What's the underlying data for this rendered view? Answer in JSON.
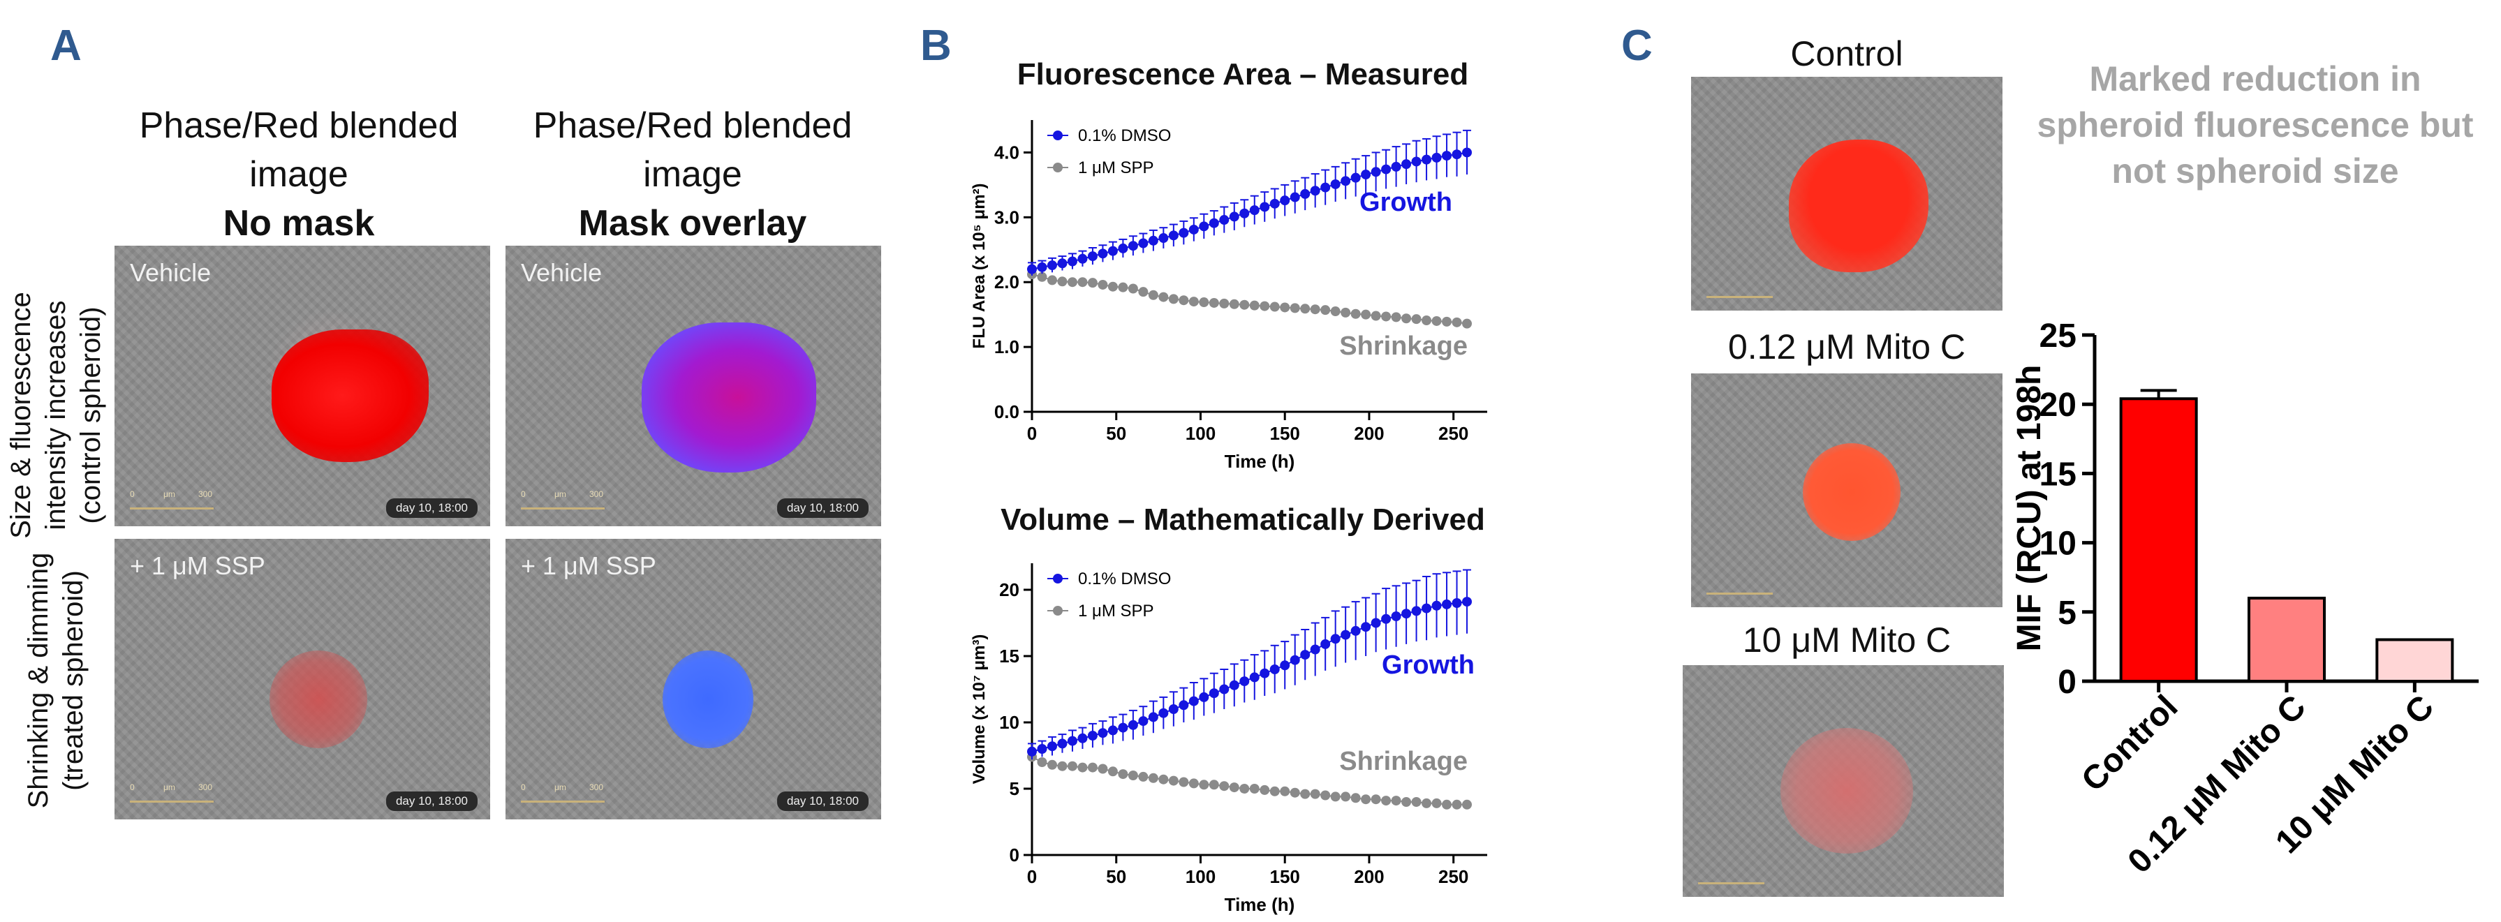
{
  "panels": {
    "A": {
      "letter": "A",
      "col1_title": "Phase/Red blended image",
      "col1_sub": "No mask",
      "col2_title": "Phase/Red blended image",
      "col2_sub": "Mask overlay",
      "row1_label": "Size & fluorescence intensity increases (control spheroid)",
      "row2_label": "Shrinking & dimming (treated spheroid)",
      "img_tl_label": "Vehicle",
      "img_tr_label": "Vehicle",
      "img_bl_label": "+ 1 μM SSP",
      "img_br_label": "+ 1 μM SSP",
      "stamp": "day 10, 18:00",
      "scale_a": "0",
      "scale_unit": "μm",
      "scale_b": "300"
    },
    "B": {
      "letter": "B",
      "top_annot_growth": "Growth",
      "top_annot_shrink": "Shrinkage",
      "bot_annot_growth": "Growth",
      "bot_annot_shrink": "Shrinkage"
    },
    "C": {
      "letter": "C",
      "img1_title": "Control",
      "img2_title": "0.12 μM Mito C",
      "img3_title": "10 μM Mito C",
      "note": "Marked reduction in spheroid fluorescence but not spheroid size"
    }
  },
  "chart_data": [
    {
      "type": "line",
      "title": "Fluorescence Area – Measured",
      "xlabel": "Time (h)",
      "ylabel": "FLU Area (x 10⁵ μm²)",
      "xlim": [
        0,
        270
      ],
      "ylim": [
        0,
        4.5
      ],
      "xticks": [
        "0",
        "50",
        "100",
        "150",
        "200",
        "250"
      ],
      "yticks": [
        "0.0",
        "1.0",
        "2.0",
        "3.0",
        "4.0"
      ],
      "legend": "top-left",
      "x": [
        0,
        6,
        12,
        18,
        24,
        30,
        36,
        42,
        48,
        54,
        60,
        66,
        72,
        78,
        84,
        90,
        96,
        102,
        108,
        114,
        120,
        126,
        132,
        138,
        144,
        150,
        156,
        162,
        168,
        174,
        180,
        186,
        192,
        198,
        204,
        210,
        216,
        222,
        228,
        234,
        240,
        246,
        252,
        258
      ],
      "series": [
        {
          "name": "0.1% DMSO",
          "color": "#1515e0",
          "values": [
            2.2,
            2.23,
            2.26,
            2.29,
            2.32,
            2.36,
            2.4,
            2.44,
            2.48,
            2.52,
            2.56,
            2.6,
            2.64,
            2.68,
            2.72,
            2.76,
            2.81,
            2.86,
            2.91,
            2.96,
            3.01,
            3.06,
            3.11,
            3.16,
            3.21,
            3.26,
            3.31,
            3.36,
            3.41,
            3.46,
            3.51,
            3.56,
            3.61,
            3.66,
            3.7,
            3.74,
            3.78,
            3.82,
            3.86,
            3.89,
            3.92,
            3.95,
            3.97,
            4.0
          ],
          "err": [
            0.1,
            0.1,
            0.11,
            0.11,
            0.12,
            0.12,
            0.13,
            0.13,
            0.14,
            0.14,
            0.15,
            0.15,
            0.16,
            0.16,
            0.17,
            0.18,
            0.18,
            0.19,
            0.19,
            0.2,
            0.21,
            0.21,
            0.22,
            0.23,
            0.23,
            0.24,
            0.25,
            0.25,
            0.26,
            0.27,
            0.27,
            0.28,
            0.29,
            0.29,
            0.3,
            0.3,
            0.31,
            0.31,
            0.32,
            0.32,
            0.33,
            0.33,
            0.34,
            0.34
          ]
        },
        {
          "name": "1 μM SPP",
          "color": "#8a8a8a",
          "values": [
            2.12,
            2.08,
            2.03,
            2.01,
            2.0,
            2.0,
            1.99,
            1.96,
            1.93,
            1.92,
            1.9,
            1.85,
            1.8,
            1.77,
            1.74,
            1.72,
            1.7,
            1.69,
            1.68,
            1.67,
            1.66,
            1.65,
            1.64,
            1.63,
            1.62,
            1.61,
            1.6,
            1.59,
            1.58,
            1.57,
            1.55,
            1.53,
            1.51,
            1.5,
            1.48,
            1.47,
            1.46,
            1.44,
            1.43,
            1.41,
            1.4,
            1.39,
            1.38,
            1.36
          ]
        }
      ]
    },
    {
      "type": "line",
      "title": "Volume – Mathematically Derived",
      "xlabel": "Time (h)",
      "ylabel": "Volume (x 10⁷ μm³)",
      "xlim": [
        0,
        270
      ],
      "ylim": [
        0,
        22
      ],
      "xticks": [
        "0",
        "50",
        "100",
        "150",
        "200",
        "250"
      ],
      "yticks": [
        "0",
        "5",
        "10",
        "15",
        "20"
      ],
      "legend": "top-left",
      "x": [
        0,
        6,
        12,
        18,
        24,
        30,
        36,
        42,
        48,
        54,
        60,
        66,
        72,
        78,
        84,
        90,
        96,
        102,
        108,
        114,
        120,
        126,
        132,
        138,
        144,
        150,
        156,
        162,
        168,
        174,
        180,
        186,
        192,
        198,
        204,
        210,
        216,
        222,
        228,
        234,
        240,
        246,
        252,
        258
      ],
      "series": [
        {
          "name": "0.1% DMSO",
          "color": "#1515e0",
          "values": [
            7.8,
            8.0,
            8.2,
            8.4,
            8.6,
            8.8,
            9.0,
            9.2,
            9.4,
            9.6,
            9.8,
            10.1,
            10.4,
            10.7,
            11.0,
            11.3,
            11.6,
            11.9,
            12.2,
            12.5,
            12.8,
            13.1,
            13.4,
            13.7,
            14.0,
            14.3,
            14.7,
            15.1,
            15.5,
            15.9,
            16.3,
            16.6,
            16.9,
            17.2,
            17.5,
            17.8,
            18.0,
            18.2,
            18.4,
            18.6,
            18.8,
            18.9,
            19.0,
            19.1
          ],
          "err": [
            0.6,
            0.6,
            0.7,
            0.7,
            0.8,
            0.8,
            0.9,
            0.9,
            1.0,
            1.0,
            1.1,
            1.1,
            1.2,
            1.2,
            1.3,
            1.3,
            1.4,
            1.4,
            1.5,
            1.5,
            1.6,
            1.6,
            1.7,
            1.7,
            1.8,
            1.8,
            1.9,
            1.9,
            2.0,
            2.0,
            2.1,
            2.1,
            2.2,
            2.2,
            2.2,
            2.3,
            2.3,
            2.3,
            2.3,
            2.4,
            2.4,
            2.4,
            2.4,
            2.4
          ]
        },
        {
          "name": "1 μM SPP",
          "color": "#8a8a8a",
          "values": [
            7.4,
            7.0,
            6.8,
            6.7,
            6.7,
            6.6,
            6.6,
            6.5,
            6.3,
            6.1,
            6.0,
            5.9,
            5.8,
            5.7,
            5.6,
            5.5,
            5.4,
            5.3,
            5.3,
            5.2,
            5.1,
            5.0,
            5.0,
            4.9,
            4.8,
            4.8,
            4.7,
            4.6,
            4.6,
            4.5,
            4.4,
            4.4,
            4.3,
            4.2,
            4.2,
            4.1,
            4.1,
            4.0,
            4.0,
            3.9,
            3.9,
            3.8,
            3.8,
            3.8
          ]
        }
      ]
    },
    {
      "type": "bar",
      "title": "",
      "xlabel": "",
      "ylabel": "MIF (RCU) at 198h",
      "ylim": [
        0,
        25
      ],
      "yticks": [
        "0",
        "5",
        "10",
        "15",
        "20",
        "25"
      ],
      "categories": [
        "Control",
        "0.12 μM Mito C",
        "10 μM Mito C"
      ],
      "values": [
        20.4,
        6.0,
        3.0
      ],
      "err": [
        0.6,
        0,
        0
      ],
      "colors": [
        "#ff0000",
        "#ff8080",
        "#ffd6d6"
      ]
    }
  ]
}
